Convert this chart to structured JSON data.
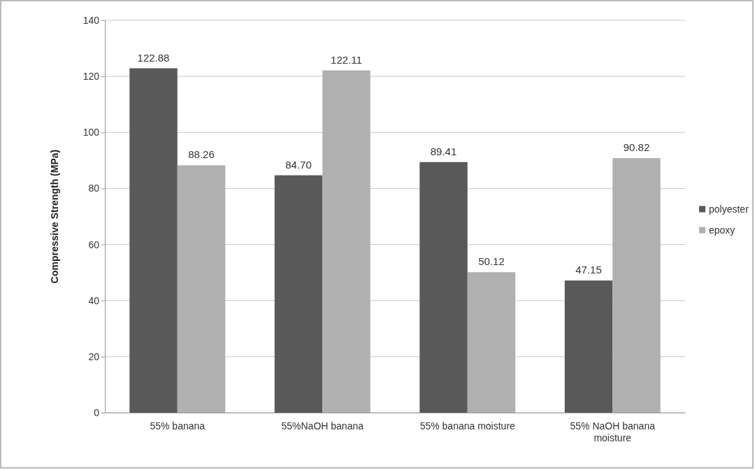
{
  "chart_data": {
    "type": "bar",
    "ylabel": "Compressive Strength (MPa)",
    "categories": [
      "55% banana",
      "55%NaOH banana",
      "55% banana moisture",
      "55% NaOH banana moisture"
    ],
    "series": [
      {
        "name": "polyester",
        "color": "#595959",
        "values": [
          122.88,
          84.7,
          89.41,
          47.15
        ],
        "value_labels": [
          "122.88",
          "84.70",
          "89.41",
          "47.15"
        ]
      },
      {
        "name": "epoxy",
        "color": "#b0b0b0",
        "values": [
          88.26,
          122.11,
          50.12,
          90.82
        ],
        "value_labels": [
          "88.26",
          "122.11",
          "50.12",
          "90.82"
        ]
      }
    ],
    "ylim": [
      0,
      140
    ],
    "yticks": [
      0,
      20,
      40,
      60,
      80,
      100,
      120,
      140
    ],
    "grid": "y",
    "legend": "right"
  }
}
